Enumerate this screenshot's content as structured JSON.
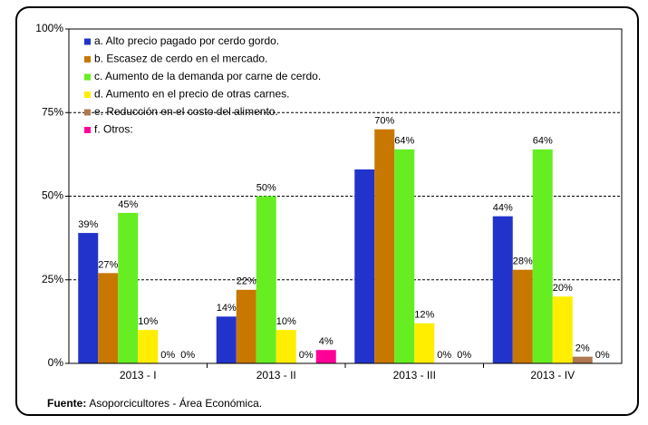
{
  "chart_data": {
    "type": "bar",
    "categories": [
      "2013 - I",
      "2013 - II",
      "2013 - III",
      "2013 - IV"
    ],
    "series": [
      {
        "name": "a. Alto precio pagado por cerdo gordo.",
        "color": "#2233cc",
        "values": [
          39,
          14,
          58,
          44
        ],
        "value_labels": [
          "39%",
          "14%",
          null,
          "44%"
        ]
      },
      {
        "name": "b. Escasez de cerdo en el mercado.",
        "color": "#c87800",
        "values": [
          27,
          22,
          70,
          28
        ],
        "value_labels": [
          "27%",
          "22%",
          "70%",
          "28%"
        ]
      },
      {
        "name": "c. Aumento de la demanda por carne de cerdo.",
        "color": "#66ee22",
        "values": [
          45,
          50,
          64,
          64
        ],
        "value_labels": [
          "45%",
          "50%",
          "64%",
          "64%"
        ]
      },
      {
        "name": "d. Aumento en el precio de otras carnes.",
        "color": "#ffee00",
        "values": [
          10,
          10,
          12,
          20
        ],
        "value_labels": [
          "10%",
          "10%",
          "12%",
          "20%"
        ]
      },
      {
        "name": "e. Reducción en el costo del alimento.",
        "color": "#b07850",
        "values": [
          0,
          0,
          0,
          2
        ],
        "value_labels": [
          "0%",
          "0%",
          "0%",
          "2%"
        ]
      },
      {
        "name": "f. Otros:",
        "color": "#ff0099",
        "values": [
          0,
          4,
          0,
          0
        ],
        "value_labels": [
          "0%",
          "4%",
          "0%",
          "0%"
        ]
      }
    ],
    "ylim": [
      0,
      100
    ],
    "yticks": [
      {
        "value": 0,
        "label": "0%"
      },
      {
        "value": 25,
        "label": "25%"
      },
      {
        "value": 50,
        "label": "50%"
      },
      {
        "value": 75,
        "label": "75%"
      },
      {
        "value": 100,
        "label": "100%"
      }
    ],
    "grid": true,
    "legend": "top-left",
    "source_label": "Fuente:",
    "source": "Asoporcicultores - Área Económica."
  }
}
